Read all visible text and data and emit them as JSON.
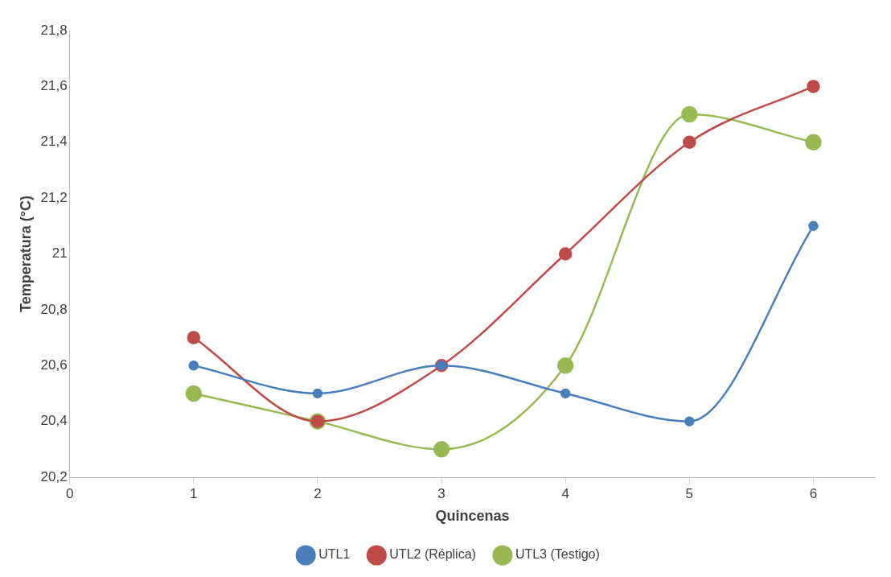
{
  "chart_data": {
    "type": "line",
    "xlabel": "Quincenas",
    "ylabel": "Temperatura (°C)",
    "x": [
      1,
      2,
      3,
      4,
      5,
      6
    ],
    "series": [
      {
        "name": "UTL1",
        "color": "#4a7ebb",
        "values": [
          20.6,
          20.5,
          20.6,
          20.5,
          20.4,
          21.1
        ]
      },
      {
        "name": "UTL2 (Réplica)",
        "color": "#be4b48",
        "values": [
          20.7,
          20.4,
          20.6,
          21.0,
          21.4,
          21.6
        ]
      },
      {
        "name": "UTL3 (Testigo)",
        "color": "#98b954",
        "values": [
          20.5,
          20.4,
          20.3,
          20.6,
          21.5,
          21.4
        ]
      }
    ],
    "xlim": [
      0,
      6.5
    ],
    "xticks": [
      0,
      1,
      2,
      3,
      4,
      5,
      6
    ],
    "ylim": [
      20.2,
      21.8
    ],
    "yticks": [
      {
        "value": 20.2,
        "label": "20,2"
      },
      {
        "value": 20.4,
        "label": "20,4"
      },
      {
        "value": 20.6,
        "label": "20,6"
      },
      {
        "value": 20.8,
        "label": "20,8"
      },
      {
        "value": 21,
        "label": "21"
      },
      {
        "value": 21.2,
        "label": "21,2"
      },
      {
        "value": 21.4,
        "label": "21,4"
      },
      {
        "value": 21.6,
        "label": "21,6"
      },
      {
        "value": 21.8,
        "label": "21,8"
      }
    ],
    "grid": false,
    "legend": "bottom",
    "marker": "circle",
    "line_style": "solid"
  }
}
